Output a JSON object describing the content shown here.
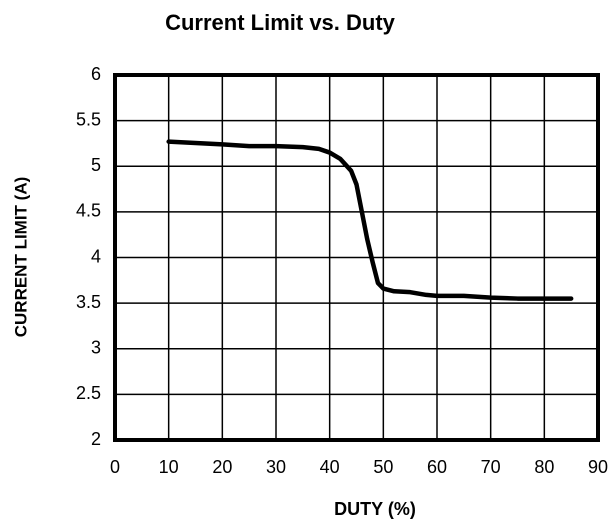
{
  "chart_data": {
    "type": "line",
    "title": "Current Limit vs. Duty",
    "xlabel": "DUTY (%)",
    "ylabel": "CURRENT  LIMIT (A)",
    "x": [
      10,
      20,
      25,
      30,
      35,
      38,
      40,
      42,
      44,
      45,
      46,
      47,
      48,
      49,
      50,
      52,
      55,
      58,
      60,
      65,
      70,
      75,
      80,
      85
    ],
    "series": [
      {
        "name": "Current Limit",
        "color": "#000000",
        "values": [
          5.27,
          5.24,
          5.22,
          5.22,
          5.21,
          5.19,
          5.15,
          5.08,
          4.95,
          4.8,
          4.5,
          4.2,
          3.95,
          3.72,
          3.66,
          3.63,
          3.62,
          3.59,
          3.58,
          3.58,
          3.56,
          3.55,
          3.55,
          3.55
        ]
      }
    ],
    "xlim": [
      0,
      90
    ],
    "xticks": [
      0,
      10,
      20,
      30,
      40,
      50,
      60,
      70,
      80,
      90
    ],
    "ylim": [
      2,
      6
    ],
    "yticks": [
      2,
      2.5,
      3,
      3.5,
      4,
      4.5,
      5,
      5.5,
      6
    ],
    "grid": true
  }
}
